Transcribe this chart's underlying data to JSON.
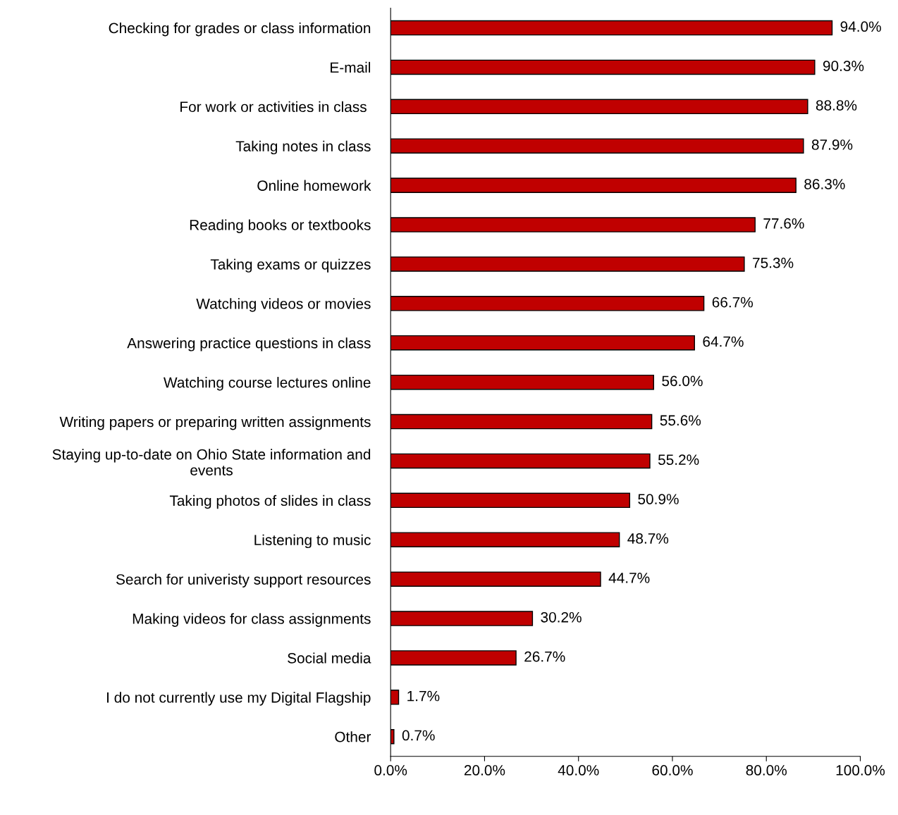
{
  "chart_data": {
    "type": "bar",
    "orientation": "horizontal",
    "categories": [
      "Checking for grades or class information",
      "E-mail",
      "For work or activities in class ",
      "Taking notes in class",
      "Online homework",
      "Reading books or textbooks",
      "Taking exams or quizzes",
      "Watching videos or movies",
      "Answering practice questions in class",
      "Watching course lectures online",
      "Writing papers or preparing written assignments",
      "Staying up-to-date on Ohio State information and\nevents",
      "Taking photos of slides in class",
      "Listening to music",
      "Search for univeristy support resources",
      "Making videos for class assignments",
      "Social media",
      "I do not currently use my Digital Flagship",
      "Other"
    ],
    "values": [
      94.0,
      90.3,
      88.8,
      87.9,
      86.3,
      77.6,
      75.3,
      66.7,
      64.7,
      56.0,
      55.6,
      55.2,
      50.9,
      48.7,
      44.7,
      30.2,
      26.7,
      1.7,
      0.7
    ],
    "value_labels": [
      "94.0%",
      "90.3%",
      "88.8%",
      "87.9%",
      "86.3%",
      "77.6%",
      "75.3%",
      "66.7%",
      "64.7%",
      "56.0%",
      "55.6%",
      "55.2%",
      "50.9%",
      "48.7%",
      "44.7%",
      "30.2%",
      "26.7%",
      "1.7%",
      "0.7%"
    ],
    "color": "#c00000",
    "xlim": [
      0,
      100
    ],
    "xticks": [
      {
        "value": 0,
        "label": "0.0%"
      },
      {
        "value": 20,
        "label": "20.0%"
      },
      {
        "value": 40,
        "label": "40.0%"
      },
      {
        "value": 60,
        "label": "60.0%"
      },
      {
        "value": 80,
        "label": "80.0%"
      },
      {
        "value": 100,
        "label": "100.0%"
      }
    ],
    "grid": false,
    "legend": false
  }
}
